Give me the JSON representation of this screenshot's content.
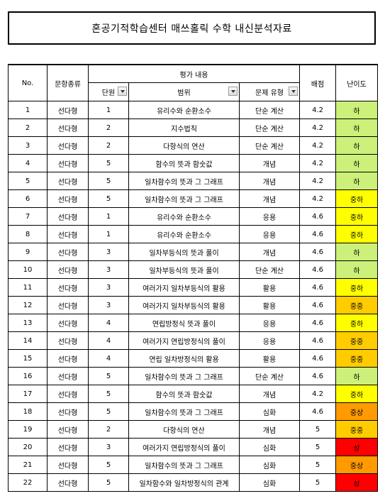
{
  "title": "혼공기적학습센터 매쓰홀릭 수학 내신분석자료",
  "headers": {
    "no": "No.",
    "type": "문항종류",
    "eval": "평가 내용",
    "unit": "단원",
    "range": "범위",
    "qtype": "문제 유형",
    "score": "배점",
    "difficulty": "난이도"
  },
  "difficulty_colors": {
    "하": "#ccf07a",
    "중하": "#ffff00",
    "중중": "#ffcc00",
    "중상": "#ff9a00",
    "상": "#ff0000"
  },
  "rows": [
    {
      "no": "1",
      "type": "선다형",
      "unit": "1",
      "range": "유리수와 순환소수",
      "qtype": "단순 계산",
      "score": "4.2",
      "diff": "하"
    },
    {
      "no": "2",
      "type": "선다형",
      "unit": "2",
      "range": "지수법칙",
      "qtype": "단순 계산",
      "score": "4.2",
      "diff": "하"
    },
    {
      "no": "3",
      "type": "선다형",
      "unit": "2",
      "range": "다항식의 연산",
      "qtype": "단순 계산",
      "score": "4.2",
      "diff": "하"
    },
    {
      "no": "4",
      "type": "선다형",
      "unit": "5",
      "range": "함수의 뜻과 함숫값",
      "qtype": "개념",
      "score": "4.2",
      "diff": "하"
    },
    {
      "no": "5",
      "type": "선다형",
      "unit": "5",
      "range": "일차함수의 뜻과 그 그래프",
      "qtype": "개념",
      "score": "4.2",
      "diff": "하"
    },
    {
      "no": "6",
      "type": "선다형",
      "unit": "5",
      "range": "일차함수의 뜻과 그 그래프",
      "qtype": "개념",
      "score": "4.2",
      "diff": "중하"
    },
    {
      "no": "7",
      "type": "선다형",
      "unit": "1",
      "range": "유리수와 순환소수",
      "qtype": "응용",
      "score": "4.6",
      "diff": "중하"
    },
    {
      "no": "8",
      "type": "선다형",
      "unit": "1",
      "range": "유리수와 순환소수",
      "qtype": "응용",
      "score": "4.6",
      "diff": "중하"
    },
    {
      "no": "9",
      "type": "선다형",
      "unit": "3",
      "range": "일차부등식의 뜻과 풀이",
      "qtype": "개념",
      "score": "4.6",
      "diff": "하"
    },
    {
      "no": "10",
      "type": "선다형",
      "unit": "3",
      "range": "일차부등식의 뜻과 풀이",
      "qtype": "단순 계산",
      "score": "4.6",
      "diff": "하"
    },
    {
      "no": "11",
      "type": "선다형",
      "unit": "3",
      "range": "여러가지 일차부등식의 활용",
      "qtype": "활용",
      "score": "4.6",
      "diff": "중하"
    },
    {
      "no": "12",
      "type": "선다형",
      "unit": "3",
      "range": "여러가지 일차부등식의 활용",
      "qtype": "활용",
      "score": "4.6",
      "diff": "중중"
    },
    {
      "no": "13",
      "type": "선다형",
      "unit": "4",
      "range": "연립방정식 뜻과 풀이",
      "qtype": "응용",
      "score": "4.6",
      "diff": "중하"
    },
    {
      "no": "14",
      "type": "선다형",
      "unit": "4",
      "range": "여러가지 연립방정식의 풀이",
      "qtype": "응용",
      "score": "4.6",
      "diff": "중중"
    },
    {
      "no": "15",
      "type": "선다형",
      "unit": "4",
      "range": "연립 일차방정식의 활용",
      "qtype": "활용",
      "score": "4.6",
      "diff": "중중"
    },
    {
      "no": "16",
      "type": "선다형",
      "unit": "5",
      "range": "일차함수의 뜻과 그 그래프",
      "qtype": "단순 계산",
      "score": "4.6",
      "diff": "하"
    },
    {
      "no": "17",
      "type": "선다형",
      "unit": "5",
      "range": "함수의 뜻과 함숫값",
      "qtype": "개념",
      "score": "4.2",
      "diff": "중하"
    },
    {
      "no": "18",
      "type": "선다형",
      "unit": "5",
      "range": "일차함수의 뜻과 그 그래프",
      "qtype": "심화",
      "score": "4.6",
      "diff": "중상"
    },
    {
      "no": "19",
      "type": "선다형",
      "unit": "2",
      "range": "다항식의 연산",
      "qtype": "개념",
      "score": "5",
      "diff": "중중"
    },
    {
      "no": "20",
      "type": "선다형",
      "unit": "3",
      "range": "여러가지 연립방정식의 풀이",
      "qtype": "심화",
      "score": "5",
      "diff": "상"
    },
    {
      "no": "21",
      "type": "선다형",
      "unit": "5",
      "range": "일차함수의 뜻과 그 그래프",
      "qtype": "심화",
      "score": "5",
      "diff": "중상"
    },
    {
      "no": "22",
      "type": "선다형",
      "unit": "5",
      "range": "일차함수와 일차방정식의 관계",
      "qtype": "심화",
      "score": "5",
      "diff": "상"
    }
  ]
}
